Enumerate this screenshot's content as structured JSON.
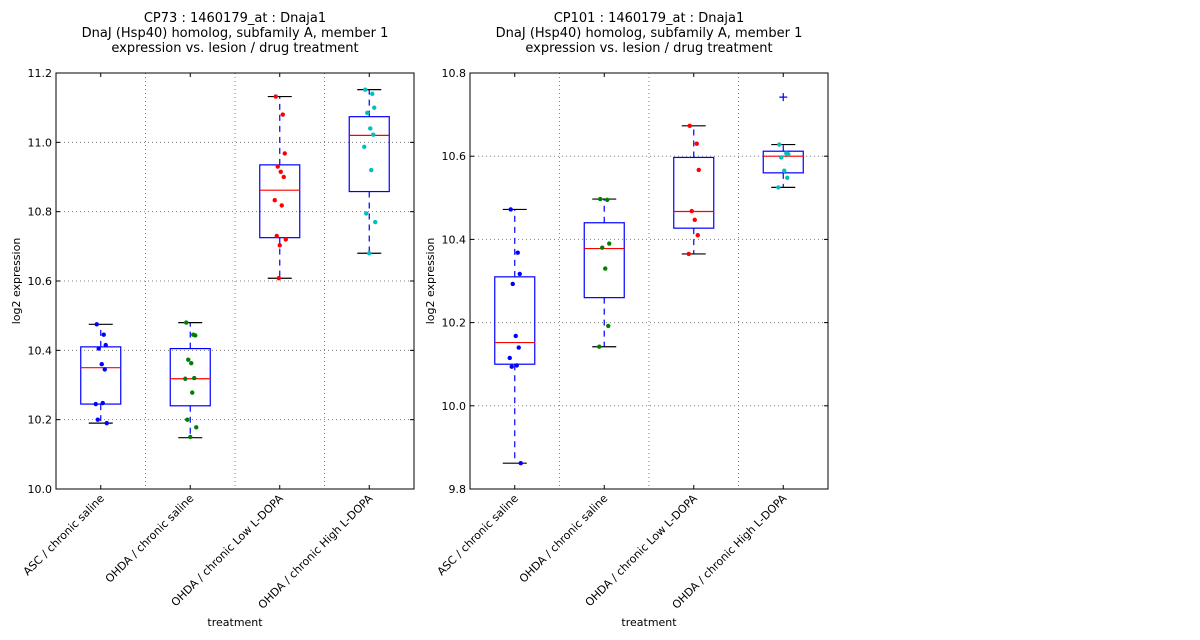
{
  "chart_data": [
    {
      "type": "box",
      "title_lines": [
        "CP73 : 1460179_at : Dnaja1",
        "DnaJ (Hsp40) homolog, subfamily A, member 1",
        "expression vs. lesion / drug treatment"
      ],
      "xlabel": "treatment",
      "ylabel": "log2 expression",
      "ylim": [
        10.0,
        11.2
      ],
      "yticks": [
        10.0,
        10.2,
        10.4,
        10.6,
        10.8,
        11.0,
        11.2
      ],
      "ytick_labels": [
        "10.0",
        "10.2",
        "10.4",
        "10.6",
        "10.8",
        "11.0",
        "11.2"
      ],
      "grid": true,
      "categories": [
        "ASC / chronic saline",
        "OHDA / chronic saline",
        "OHDA / chronic Low L-DOPA",
        "OHDA / chronic High L-DOPA"
      ],
      "groups": [
        {
          "color": "#0000ff",
          "q1": 10.245,
          "median": 10.35,
          "q3": 10.41,
          "whisker_low": 10.19,
          "whisker_high": 10.475,
          "outliers": [],
          "points": [
            10.475,
            10.445,
            10.415,
            10.405,
            10.36,
            10.345,
            10.245,
            10.248,
            10.2,
            10.19
          ]
        },
        {
          "color": "#008000",
          "q1": 10.24,
          "median": 10.318,
          "q3": 10.405,
          "whisker_low": 10.148,
          "whisker_high": 10.48,
          "outliers": [],
          "points": [
            10.48,
            10.445,
            10.443,
            10.373,
            10.363,
            10.32,
            10.318,
            10.278,
            10.2,
            10.178,
            10.15
          ]
        },
        {
          "color": "#ff0000",
          "q1": 10.725,
          "median": 10.862,
          "q3": 10.935,
          "whisker_low": 10.608,
          "whisker_high": 11.132,
          "outliers": [],
          "points": [
            11.132,
            11.08,
            10.968,
            10.93,
            10.915,
            10.9,
            10.833,
            10.818,
            10.73,
            10.72,
            10.703,
            10.608
          ]
        },
        {
          "color": "#00bfbf",
          "q1": 10.858,
          "median": 11.02,
          "q3": 11.074,
          "whisker_low": 10.68,
          "whisker_high": 11.152,
          "outliers": [],
          "points": [
            11.152,
            11.14,
            11.1,
            11.085,
            11.04,
            11.022,
            10.987,
            10.92,
            10.795,
            10.77,
            10.68
          ]
        }
      ]
    },
    {
      "type": "box",
      "title_lines": [
        "CP101 : 1460179_at : Dnaja1",
        "DnaJ (Hsp40) homolog, subfamily A, member 1",
        "expression vs. lesion / drug treatment"
      ],
      "xlabel": "treatment",
      "ylabel": "log2 expression",
      "ylim": [
        9.8,
        10.8
      ],
      "yticks": [
        9.8,
        10.0,
        10.2,
        10.4,
        10.6,
        10.8
      ],
      "ytick_labels": [
        "9.8",
        "10.0",
        "10.2",
        "10.4",
        "10.6",
        "10.8"
      ],
      "grid": true,
      "categories": [
        "ASC / chronic saline",
        "OHDA / chronic saline",
        "OHDA / chronic Low L-DOPA",
        "OHDA / chronic High L-DOPA"
      ],
      "groups": [
        {
          "color": "#0000ff",
          "q1": 10.1,
          "median": 10.152,
          "q3": 10.31,
          "whisker_low": 9.862,
          "whisker_high": 10.472,
          "outliers": [],
          "points": [
            10.472,
            10.368,
            10.317,
            10.293,
            10.168,
            10.14,
            10.115,
            10.097,
            10.094,
            9.862
          ]
        },
        {
          "color": "#008000",
          "q1": 10.26,
          "median": 10.378,
          "q3": 10.44,
          "whisker_low": 10.142,
          "whisker_high": 10.497,
          "outliers": [],
          "points": [
            10.497,
            10.495,
            10.39,
            10.38,
            10.33,
            10.192,
            10.142
          ]
        },
        {
          "color": "#ff0000",
          "q1": 10.427,
          "median": 10.467,
          "q3": 10.597,
          "whisker_low": 10.365,
          "whisker_high": 10.673,
          "outliers": [],
          "points": [
            10.673,
            10.63,
            10.567,
            10.468,
            10.447,
            10.41,
            10.365
          ]
        },
        {
          "color": "#00bfbf",
          "q1": 10.56,
          "median": 10.6,
          "q3": 10.612,
          "whisker_low": 10.525,
          "whisker_high": 10.628,
          "outliers": [
            10.742
          ],
          "points": [
            10.628,
            10.607,
            10.605,
            10.597,
            10.565,
            10.548,
            10.525
          ]
        }
      ]
    }
  ]
}
